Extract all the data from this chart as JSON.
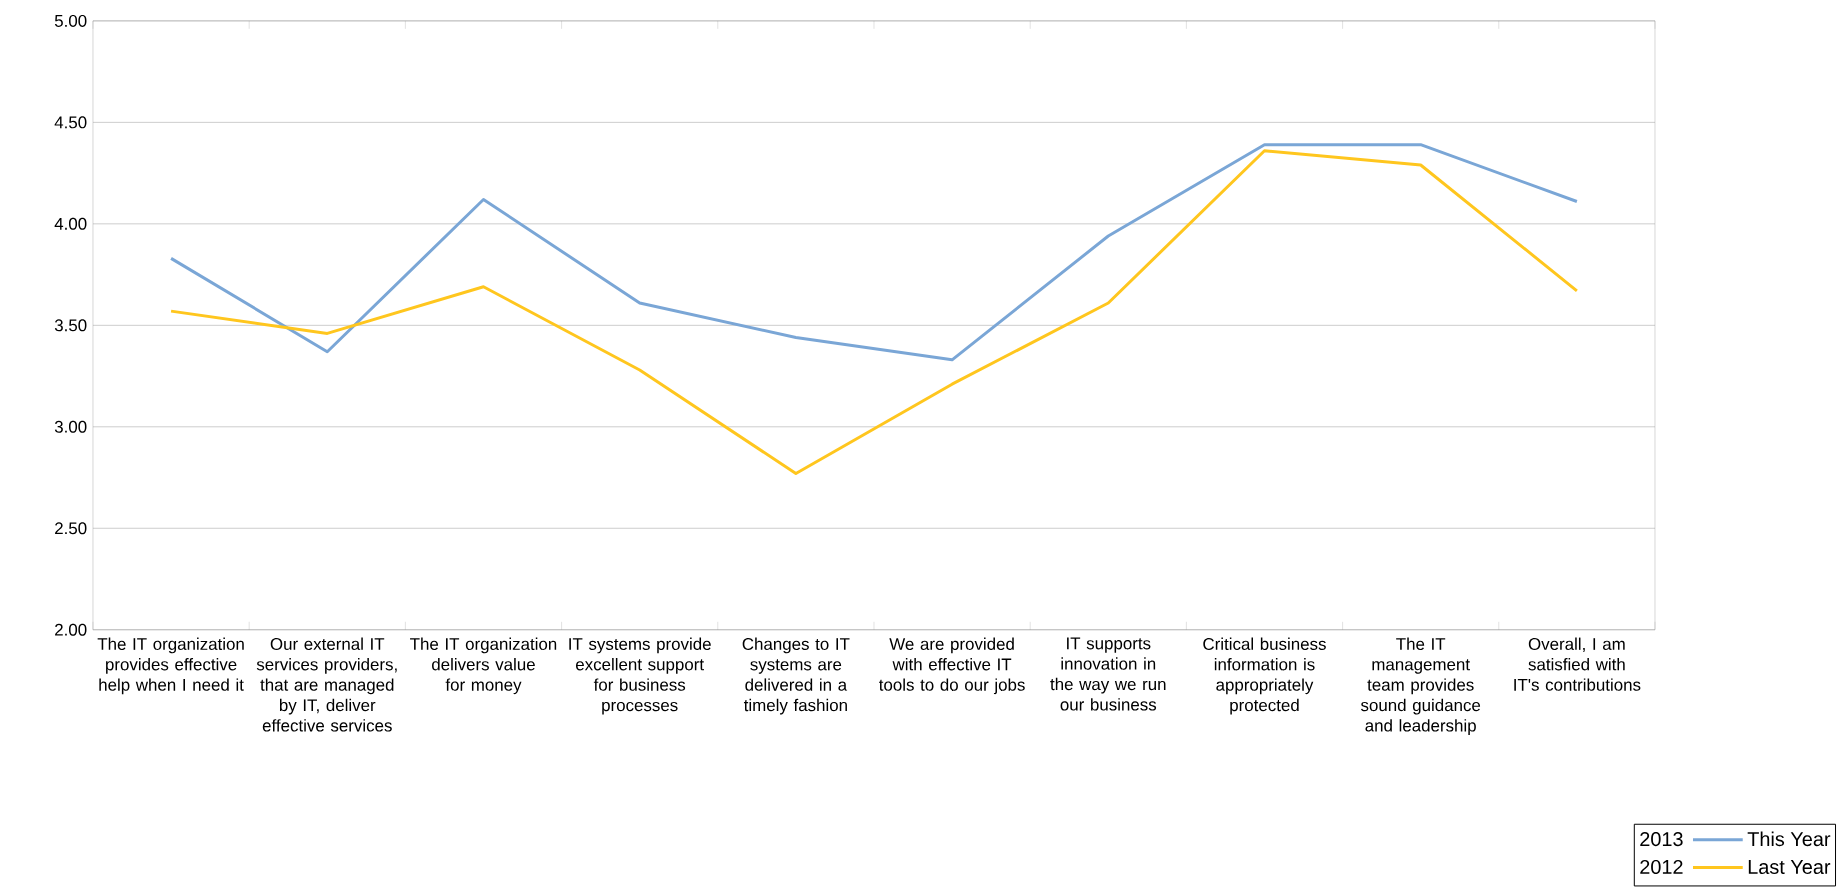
{
  "chart_data": {
    "type": "line",
    "categories": [
      "The IT organization provides effective help when I need it",
      "Our external IT services providers, that are managed by IT, deliver effective services",
      "The IT organization delivers value for money",
      "IT systems provide excellent support for business processes",
      "Changes to IT systems are delivered in a timely fashion",
      "We are provided with effective IT tools to do our jobs",
      "IT supports innovation in the way we run our business",
      "Critical business information is appropriately protected",
      "The IT management team provides sound guidance and leadership",
      "Overall, I am satisfied with IT's contributions"
    ],
    "series": [
      {
        "name": "This Year",
        "color": "#7aa6d6",
        "values": [
          3.83,
          3.37,
          4.12,
          3.61,
          3.44,
          3.33,
          3.94,
          4.39,
          4.39,
          4.11
        ]
      },
      {
        "name": "Last Year",
        "color": "#ffc61e",
        "values": [
          3.57,
          3.46,
          3.69,
          3.28,
          2.77,
          3.21,
          3.61,
          4.36,
          4.29,
          3.67
        ]
      }
    ],
    "ylim": [
      2,
      5
    ],
    "yticks": [
      {
        "value": 2,
        "label": "2.00"
      },
      {
        "value": 2.5,
        "label": "2.50"
      },
      {
        "value": 3,
        "label": "3.00"
      },
      {
        "value": 3.5,
        "label": "3.50"
      },
      {
        "value": 4,
        "label": "4.00"
      },
      {
        "value": 4.5,
        "label": "4.50"
      },
      {
        "value": 5,
        "label": "5.00"
      }
    ],
    "grid": "y",
    "legend": "bottom right",
    "annotations": [
      "2013",
      "2012"
    ]
  }
}
